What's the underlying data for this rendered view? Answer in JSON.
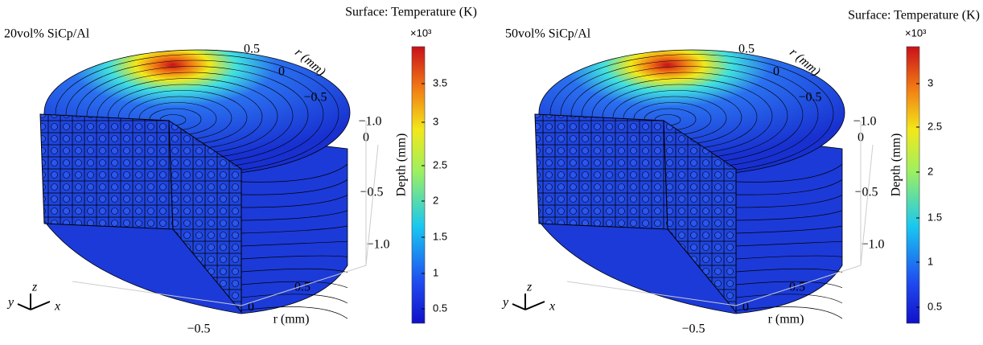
{
  "panels": [
    {
      "label": "20vol% SiCp/Al",
      "colorbar": {
        "title": "Surface: Temperature (K)",
        "multiplier": "×10³",
        "ticks": [
          "0.5",
          "1",
          "1.5",
          "2",
          "2.5",
          "3",
          "3.5"
        ]
      },
      "axes": {
        "r_top": {
          "label": "r (mm)",
          "ticks": [
            "0.5",
            "0",
            "−0.5",
            "−1.0"
          ]
        },
        "depth": {
          "label": "Depth (mm)",
          "ticks": [
            "0",
            "−0.5",
            "−1.0"
          ]
        },
        "r_bottom": {
          "label": "r (mm)",
          "ticks": [
            "0.5",
            "0",
            "−0.5"
          ]
        }
      },
      "triad": {
        "x": "x",
        "y": "y",
        "z": "z"
      }
    },
    {
      "label": "50vol% SiCp/Al",
      "colorbar": {
        "title": "Surface: Temperature (K)",
        "multiplier": "×10³",
        "ticks": [
          "0.5",
          "1",
          "1.5",
          "2",
          "2.5",
          "3"
        ]
      },
      "axes": {
        "r_top": {
          "label": "r (mm)",
          "ticks": [
            "0.5",
            "0",
            "−0.5",
            "−1.0"
          ]
        },
        "depth": {
          "label": "Depth (mm)",
          "ticks": [
            "0",
            "−0.5",
            "−1.0"
          ]
        },
        "r_bottom": {
          "label": "r (mm)",
          "ticks": [
            "0.5",
            "0",
            "−0.5"
          ]
        }
      },
      "triad": {
        "x": "x",
        "y": "y",
        "z": "z"
      }
    }
  ]
}
